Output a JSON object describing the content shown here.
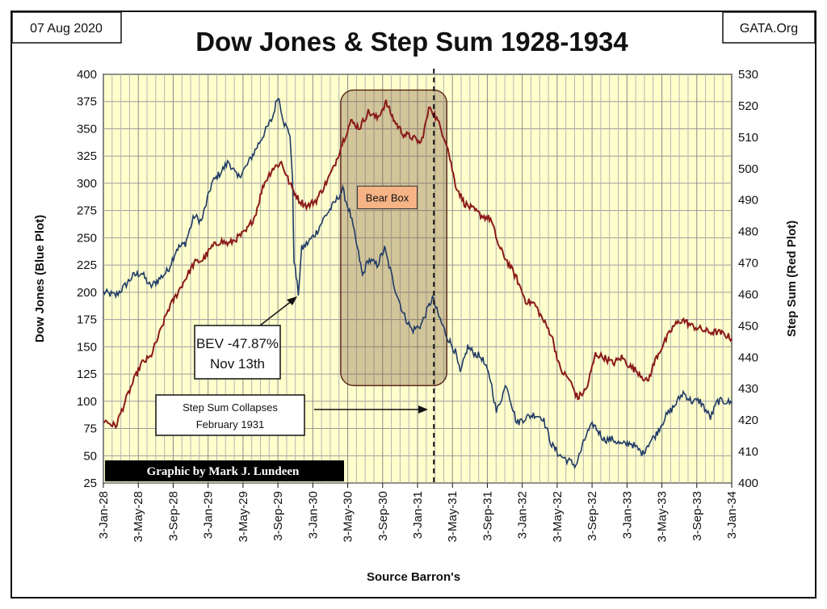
{
  "header": {
    "date_label": "07 Aug 2020",
    "source_site": "GATA.Org"
  },
  "chart_data": {
    "type": "line",
    "title": "Dow Jones & Step Sum 1928-1934",
    "xlabel": "Source Barron's",
    "ylabel_left": "Dow Jones  (Blue Plot)",
    "ylabel_right": "Step Sum  (Red Plot)",
    "x_tick_labels": [
      "3-Jan-28",
      "3-May-28",
      "3-Sep-28",
      "3-Jan-29",
      "3-May-29",
      "3-Sep-29",
      "3-Jan-30",
      "3-May-30",
      "3-Sep-30",
      "3-Jan-31",
      "3-May-31",
      "3-Sep-31",
      "3-Jan-32",
      "3-May-32",
      "3-Sep-32",
      "3-Jan-33",
      "3-May-33",
      "3-Sep-33",
      "3-Jan-34"
    ],
    "xlim": [
      "1928-01-03",
      "1934-01-03"
    ],
    "ylim_left": [
      25,
      400
    ],
    "ylim_right": [
      400,
      530
    ],
    "y_ticks_left": [
      25,
      50,
      75,
      100,
      125,
      150,
      175,
      200,
      225,
      250,
      275,
      300,
      325,
      350,
      375,
      400
    ],
    "y_ticks_right": [
      400,
      410,
      420,
      430,
      440,
      450,
      460,
      470,
      480,
      490,
      500,
      510,
      520,
      530
    ],
    "grid": true,
    "background_color": "#ffffcc",
    "series": [
      {
        "axis": "left",
        "color": "#1f3a66",
        "points": [
          [
            "1928-01-03",
            200
          ],
          [
            "1928-02-15",
            197
          ],
          [
            "1928-03-15",
            205
          ],
          [
            "1928-04-15",
            215
          ],
          [
            "1928-05-15",
            218
          ],
          [
            "1928-06-15",
            205
          ],
          [
            "1928-07-15",
            212
          ],
          [
            "1928-08-15",
            220
          ],
          [
            "1928-09-15",
            240
          ],
          [
            "1928-10-15",
            245
          ],
          [
            "1928-11-15",
            270
          ],
          [
            "1928-12-10",
            265
          ],
          [
            "1929-01-15",
            300
          ],
          [
            "1929-02-15",
            310
          ],
          [
            "1929-03-15",
            320
          ],
          [
            "1929-04-15",
            305
          ],
          [
            "1929-05-15",
            315
          ],
          [
            "1929-06-15",
            330
          ],
          [
            "1929-07-15",
            345
          ],
          [
            "1929-08-15",
            360
          ],
          [
            "1929-09-03",
            381
          ],
          [
            "1929-09-25",
            355
          ],
          [
            "1929-10-15",
            345
          ],
          [
            "1929-10-24",
            300
          ],
          [
            "1929-10-29",
            230
          ],
          [
            "1929-11-13",
            199
          ],
          [
            "1929-11-25",
            240
          ],
          [
            "1929-12-15",
            245
          ],
          [
            "1930-01-15",
            255
          ],
          [
            "1930-02-15",
            270
          ],
          [
            "1930-03-15",
            280
          ],
          [
            "1930-04-17",
            294
          ],
          [
            "1930-05-15",
            270
          ],
          [
            "1930-06-15",
            230
          ],
          [
            "1930-06-25",
            215
          ],
          [
            "1930-07-15",
            230
          ],
          [
            "1930-08-15",
            225
          ],
          [
            "1930-09-10",
            240
          ],
          [
            "1930-10-15",
            205
          ],
          [
            "1930-11-15",
            180
          ],
          [
            "1930-12-15",
            165
          ],
          [
            "1931-01-15",
            170
          ],
          [
            "1931-02-24",
            195
          ],
          [
            "1931-03-15",
            180
          ],
          [
            "1931-04-15",
            160
          ],
          [
            "1931-05-15",
            145
          ],
          [
            "1931-06-01",
            125
          ],
          [
            "1931-06-27",
            150
          ],
          [
            "1931-07-15",
            145
          ],
          [
            "1931-08-15",
            140
          ],
          [
            "1931-09-15",
            120
          ],
          [
            "1931-10-05",
            90
          ],
          [
            "1931-11-09",
            116
          ],
          [
            "1931-12-15",
            80
          ],
          [
            "1932-01-15",
            85
          ],
          [
            "1932-02-15",
            88
          ],
          [
            "1932-03-15",
            85
          ],
          [
            "1932-04-15",
            60
          ],
          [
            "1932-05-15",
            50
          ],
          [
            "1932-06-15",
            45
          ],
          [
            "1932-07-08",
            41
          ],
          [
            "1932-08-15",
            70
          ],
          [
            "1932-09-07",
            79
          ],
          [
            "1932-10-15",
            65
          ],
          [
            "1932-11-15",
            65
          ],
          [
            "1932-12-15",
            60
          ],
          [
            "1933-01-15",
            62
          ],
          [
            "1933-02-27",
            52
          ],
          [
            "1933-03-15",
            60
          ],
          [
            "1933-04-15",
            70
          ],
          [
            "1933-05-15",
            85
          ],
          [
            "1933-06-15",
            95
          ],
          [
            "1933-07-18",
            108
          ],
          [
            "1933-08-15",
            100
          ],
          [
            "1933-09-15",
            100
          ],
          [
            "1933-10-21",
            85
          ],
          [
            "1933-11-15",
            100
          ],
          [
            "1933-12-15",
            100
          ],
          [
            "1934-01-03",
            98
          ]
        ]
      },
      {
        "axis": "right",
        "color": "#8b1a1a",
        "points": [
          [
            "1928-01-03",
            420
          ],
          [
            "1928-02-15",
            418
          ],
          [
            "1928-03-15",
            425
          ],
          [
            "1928-04-15",
            432
          ],
          [
            "1928-05-15",
            438
          ],
          [
            "1928-06-15",
            440
          ],
          [
            "1928-07-15",
            447
          ],
          [
            "1928-08-15",
            455
          ],
          [
            "1928-09-15",
            460
          ],
          [
            "1928-10-15",
            465
          ],
          [
            "1928-11-15",
            470
          ],
          [
            "1928-12-15",
            471
          ],
          [
            "1929-01-15",
            475
          ],
          [
            "1929-02-15",
            477
          ],
          [
            "1929-03-15",
            476
          ],
          [
            "1929-04-15",
            478
          ],
          [
            "1929-05-15",
            480
          ],
          [
            "1929-06-15",
            485
          ],
          [
            "1929-07-15",
            495
          ],
          [
            "1929-08-15",
            500
          ],
          [
            "1929-09-15",
            502
          ],
          [
            "1929-10-15",
            495
          ],
          [
            "1929-11-15",
            490
          ],
          [
            "1929-12-15",
            488
          ],
          [
            "1930-01-15",
            490
          ],
          [
            "1930-02-15",
            495
          ],
          [
            "1930-03-15",
            500
          ],
          [
            "1930-04-15",
            508
          ],
          [
            "1930-05-15",
            515
          ],
          [
            "1930-06-15",
            513
          ],
          [
            "1930-07-15",
            518
          ],
          [
            "1930-08-15",
            516
          ],
          [
            "1930-09-15",
            521
          ],
          [
            "1930-10-15",
            515
          ],
          [
            "1930-11-15",
            511
          ],
          [
            "1930-12-15",
            510
          ],
          [
            "1931-01-15",
            508
          ],
          [
            "1931-02-15",
            520
          ],
          [
            "1931-03-15",
            515
          ],
          [
            "1931-04-15",
            508
          ],
          [
            "1931-05-15",
            495
          ],
          [
            "1931-06-15",
            489
          ],
          [
            "1931-07-15",
            487
          ],
          [
            "1931-08-15",
            485
          ],
          [
            "1931-09-15",
            484
          ],
          [
            "1931-10-15",
            475
          ],
          [
            "1931-11-15",
            470
          ],
          [
            "1931-12-15",
            465
          ],
          [
            "1932-01-15",
            458
          ],
          [
            "1932-02-15",
            457
          ],
          [
            "1932-03-15",
            452
          ],
          [
            "1932-04-15",
            447
          ],
          [
            "1932-05-15",
            436
          ],
          [
            "1932-06-15",
            433
          ],
          [
            "1932-07-15",
            427
          ],
          [
            "1932-08-15",
            430
          ],
          [
            "1932-09-15",
            441
          ],
          [
            "1932-10-15",
            440
          ],
          [
            "1932-11-15",
            438
          ],
          [
            "1932-12-15",
            440
          ],
          [
            "1933-01-15",
            437
          ],
          [
            "1933-02-15",
            435
          ],
          [
            "1933-03-15",
            432
          ],
          [
            "1933-04-15",
            440
          ],
          [
            "1933-05-15",
            445
          ],
          [
            "1933-06-15",
            450
          ],
          [
            "1933-07-15",
            452
          ],
          [
            "1933-08-15",
            450
          ],
          [
            "1933-09-15",
            449
          ],
          [
            "1933-10-15",
            448
          ],
          [
            "1933-11-15",
            448
          ],
          [
            "1933-12-15",
            447
          ],
          [
            "1934-01-03",
            446
          ]
        ]
      }
    ],
    "bear_box": {
      "label": "Bear Box",
      "x_start": "1930-04-10",
      "x_end": "1931-04-15",
      "y_top": 525,
      "y_bottom": 431
    },
    "marker_line": {
      "x": "1931-03-01"
    },
    "annotations": [
      {
        "lines": [
          "BEV -47.87%",
          "Nov 13th"
        ],
        "points_to": {
          "x": "1929-11-13",
          "y": 199
        }
      },
      {
        "lines": [
          "Step Sum Collapses",
          "February 1931"
        ],
        "points_to": {
          "x": "1931-02-25",
          "y": 93
        }
      }
    ],
    "credit": "Graphic by Mark J. Lundeen"
  }
}
